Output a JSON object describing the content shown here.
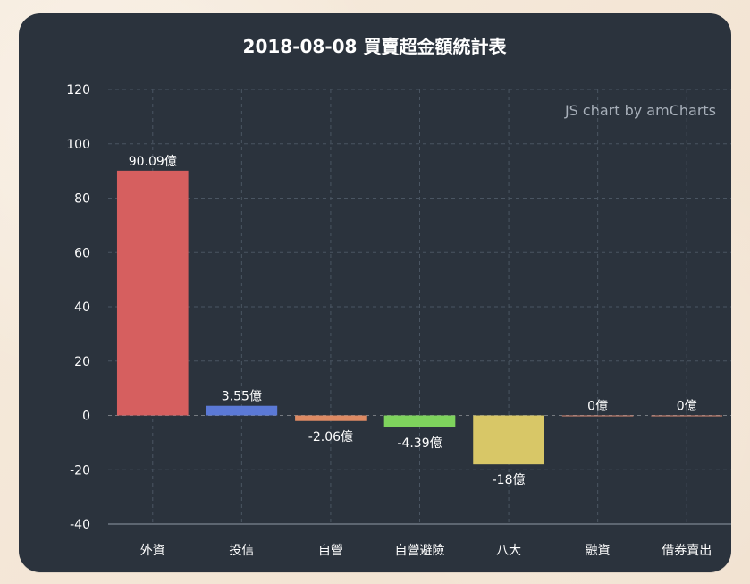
{
  "chart_data": {
    "type": "bar",
    "title": "2018-08-08 買賣超金額統計表",
    "credit": "JS chart by amCharts",
    "categories": [
      "外資",
      "投信",
      "自營",
      "自營避險",
      "八大",
      "融資",
      "借券賣出"
    ],
    "values": [
      90.09,
      3.55,
      -2.06,
      -4.39,
      -18,
      0,
      0
    ],
    "value_labels": [
      "90.09億",
      "3.55億",
      "-2.06億",
      "-4.39億",
      "-18億",
      "0億",
      "0億"
    ],
    "colors": [
      "#d65f5f",
      "#5b79d6",
      "#dd8a63",
      "#7ed35d",
      "#d8c767",
      "#d98974",
      "#d98974"
    ],
    "ylim": [
      -40,
      120
    ],
    "yticks": [
      120,
      100,
      80,
      60,
      40,
      20,
      0,
      -20,
      -40
    ],
    "xlabel": "",
    "ylabel": "",
    "grid": true
  }
}
